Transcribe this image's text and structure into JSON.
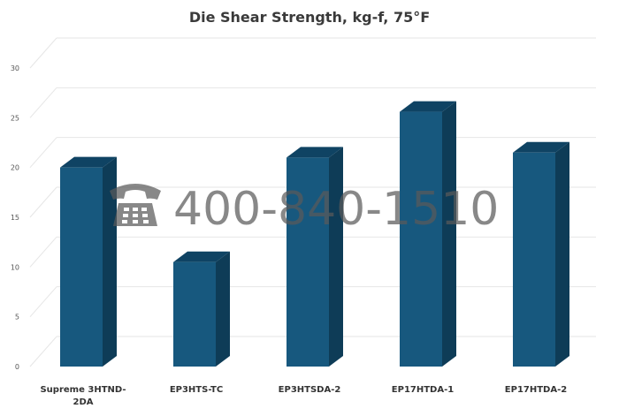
{
  "chart_data": {
    "type": "bar",
    "title": "Die Shear Strength, kg-f, 75°F",
    "xlabel": "",
    "ylabel": "",
    "categories": [
      "Supreme 3HTND-2DA",
      "EP3HTS-TC",
      "EP3HTSDA-2",
      "EP17HTDA-1",
      "EP17HTDA-2"
    ],
    "category_label_lines": [
      [
        "Supreme 3HTND-",
        "2DA"
      ],
      [
        "EP3HTS-TC"
      ],
      [
        "EP3HTSDA-2"
      ],
      [
        "EP17HTDA-1"
      ],
      [
        "EP17HTDA-2"
      ]
    ],
    "values": [
      20.0,
      10.5,
      21.0,
      25.6,
      21.5
    ],
    "ylim": [
      0,
      30
    ],
    "yticks": [
      "0",
      "5",
      "10",
      "15",
      "20",
      "25",
      "30"
    ],
    "grid": true,
    "bar_color": "#17587e",
    "bar_side_color": "#0e3c57",
    "bar_top_color": "#0f4363"
  },
  "watermark": {
    "text": "400-840-1510",
    "icon": "phone-icon"
  }
}
